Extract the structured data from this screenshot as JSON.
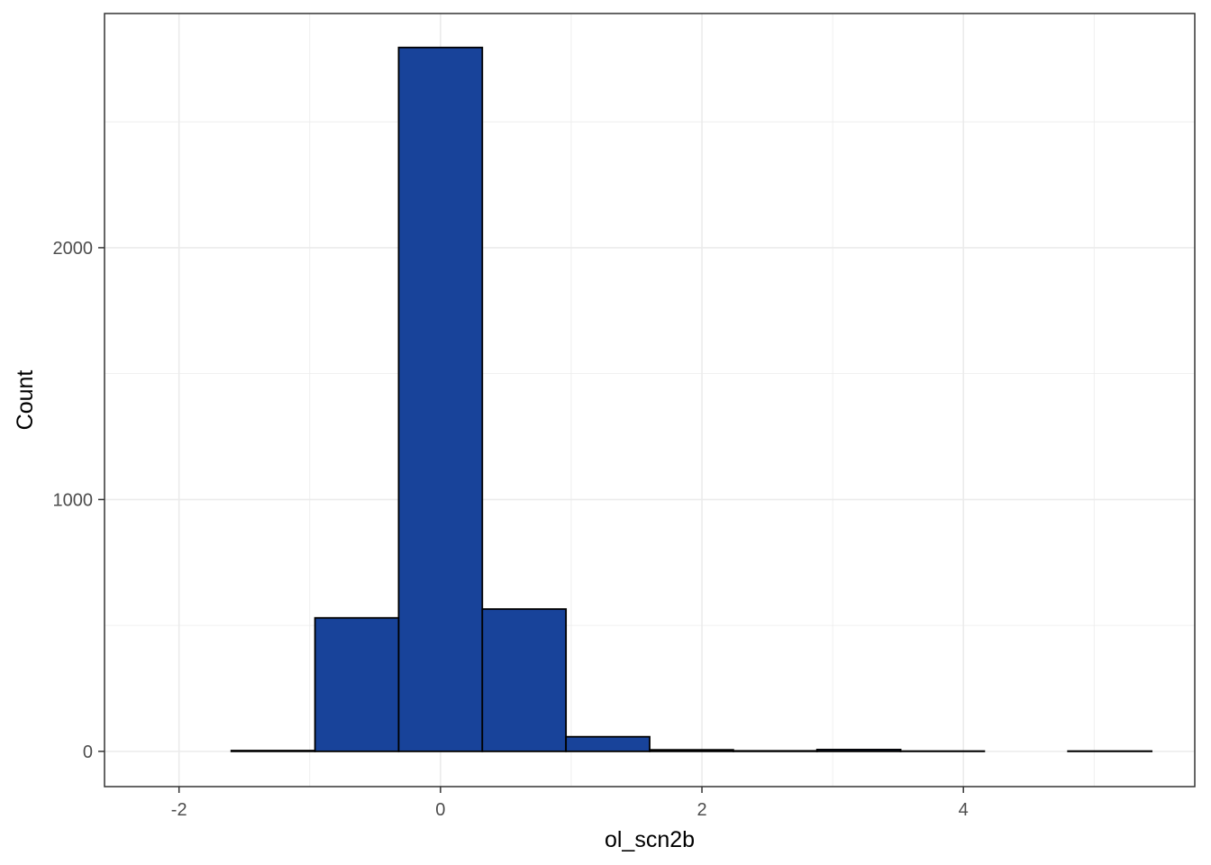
{
  "chart_data": {
    "type": "histogram",
    "xlabel": "ol_scn2b",
    "ylabel": "Count",
    "xlim": [
      -2.57,
      5.77
    ],
    "ylim": [
      -140,
      2930
    ],
    "x_ticks": [
      -2,
      0,
      2,
      4
    ],
    "y_ticks": [
      0,
      1000,
      2000
    ],
    "grid": true,
    "bins": [
      {
        "start": -2.24,
        "end": -1.6,
        "count": 0
      },
      {
        "start": -1.6,
        "end": -0.96,
        "count": 3
      },
      {
        "start": -0.96,
        "end": -0.32,
        "count": 530
      },
      {
        "start": -0.32,
        "end": 0.32,
        "count": 2795
      },
      {
        "start": 0.32,
        "end": 0.96,
        "count": 565
      },
      {
        "start": 0.96,
        "end": 1.6,
        "count": 58
      },
      {
        "start": 1.6,
        "end": 2.24,
        "count": 6
      },
      {
        "start": 2.24,
        "end": 2.88,
        "count": 2
      },
      {
        "start": 2.88,
        "end": 3.52,
        "count": 7
      },
      {
        "start": 3.52,
        "end": 4.16,
        "count": 1
      },
      {
        "start": 4.16,
        "end": 4.8,
        "count": 0
      },
      {
        "start": 4.8,
        "end": 5.44,
        "count": 1
      }
    ],
    "colors": {
      "bar_fill": "#18439A",
      "bar_stroke": "#000000",
      "grid": "#EBEBEB",
      "panel_border": "#333333",
      "tick_text": "#4D4D4D"
    }
  }
}
